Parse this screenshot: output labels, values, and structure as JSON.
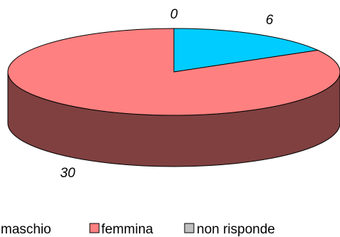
{
  "chart_data": {
    "type": "pie",
    "style": "3d",
    "title": "",
    "slices": [
      {
        "name": "maschio",
        "value": 6,
        "label": "6",
        "color": "#00CCFF",
        "side_color": "#0099CC"
      },
      {
        "name": "femmina",
        "value": 30,
        "label": "30",
        "color": "#FF8080",
        "side_color": "#804040"
      },
      {
        "name": "non risponde",
        "value": 0,
        "label": "0",
        "color": "#C0C0C0",
        "side_color": "#808080"
      }
    ],
    "legend": {
      "position": "bottom",
      "entries": [
        "maschio",
        "femmina",
        "non risponde"
      ]
    }
  }
}
